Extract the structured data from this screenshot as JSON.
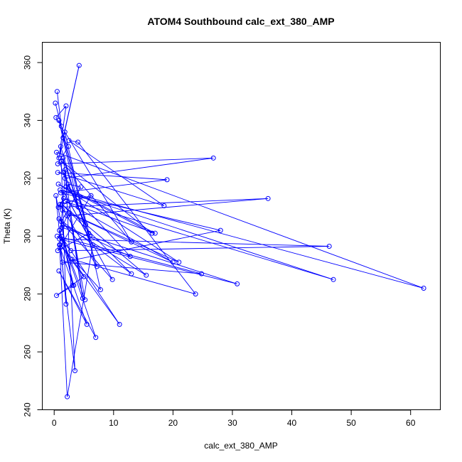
{
  "chart_data": {
    "type": "line",
    "title": "ATOM4 Southbound calc_ext_380_AMP",
    "xlabel": "calc_ext_380_AMP",
    "ylabel": "Theta (K)",
    "xlim": [
      -2,
      65
    ],
    "ylim": [
      240,
      367
    ],
    "xticks": [
      "0",
      "10",
      "20",
      "30",
      "40",
      "50",
      "60"
    ],
    "yticks": [
      "240",
      "260",
      "280",
      "300",
      "320",
      "340",
      "360"
    ],
    "grid": false,
    "legend": "none",
    "series": [
      {
        "color": "#0000ff",
        "marker": "open-circle",
        "x": [
          0.5,
          1.2,
          0.3,
          2.0,
          0.8,
          4.2,
          1.5,
          2.4,
          0.6,
          26.8,
          1.8,
          0.4,
          62.2,
          1.0,
          47.0,
          1.6,
          0.7,
          36.0,
          2.2,
          1.3,
          30.8,
          0.9,
          46.3,
          2.8,
          0.5,
          24.8,
          1.4,
          28.0,
          1.1,
          19.0,
          0.6,
          18.5,
          2.5,
          4.0,
          23.8,
          3.0,
          11.0,
          1.2,
          7.0,
          0.8,
          5.5,
          1.0,
          3.5,
          1.9,
          0.9,
          2.2,
          6.5,
          1.7,
          9.8,
          0.8,
          13.0,
          1.3,
          15.5,
          1.5,
          12.8,
          2.0,
          17.0,
          1.9,
          20.0,
          1.4,
          21.0,
          0.7,
          16.5,
          1.2,
          13.0,
          1.8,
          7.8,
          1.0,
          5.0,
          0.4,
          3.3,
          0.9,
          5.2,
          2.6,
          4.8,
          1.5,
          7.2,
          1.0,
          6.2,
          0.6,
          5.8,
          2.3,
          4.5,
          1.2,
          3.1,
          0.3,
          2.0,
          1.1,
          4.1,
          0.8,
          5.3,
          1.6,
          6.0,
          0.2
        ],
        "y": [
          350,
          338,
          341,
          345,
          327,
          359,
          334,
          331,
          325,
          327,
          320,
          329,
          282,
          316,
          285,
          313,
          310,
          313,
          307,
          303,
          283.5,
          299,
          296.5,
          295,
          300,
          287,
          291,
          302,
          315,
          319.5,
          322,
          310.5,
          333,
          332.5,
          280,
          292,
          269.5,
          300,
          265,
          288,
          269.5,
          296,
          253.5,
          323,
          297,
          244.5,
          297,
          315,
          285,
          306,
          287,
          311,
          286.5,
          304,
          293,
          317,
          301,
          312,
          291,
          309,
          291,
          318,
          301,
          326,
          298,
          336,
          281.5,
          297,
          286,
          279.5,
          283,
          302,
          278,
          308,
          278.5,
          327,
          289.5,
          311,
          314,
          295,
          301,
          318,
          317,
          305,
          283,
          314,
          276.5,
          331,
          310,
          340,
          304,
          322,
          300,
          346
        ]
      }
    ]
  }
}
